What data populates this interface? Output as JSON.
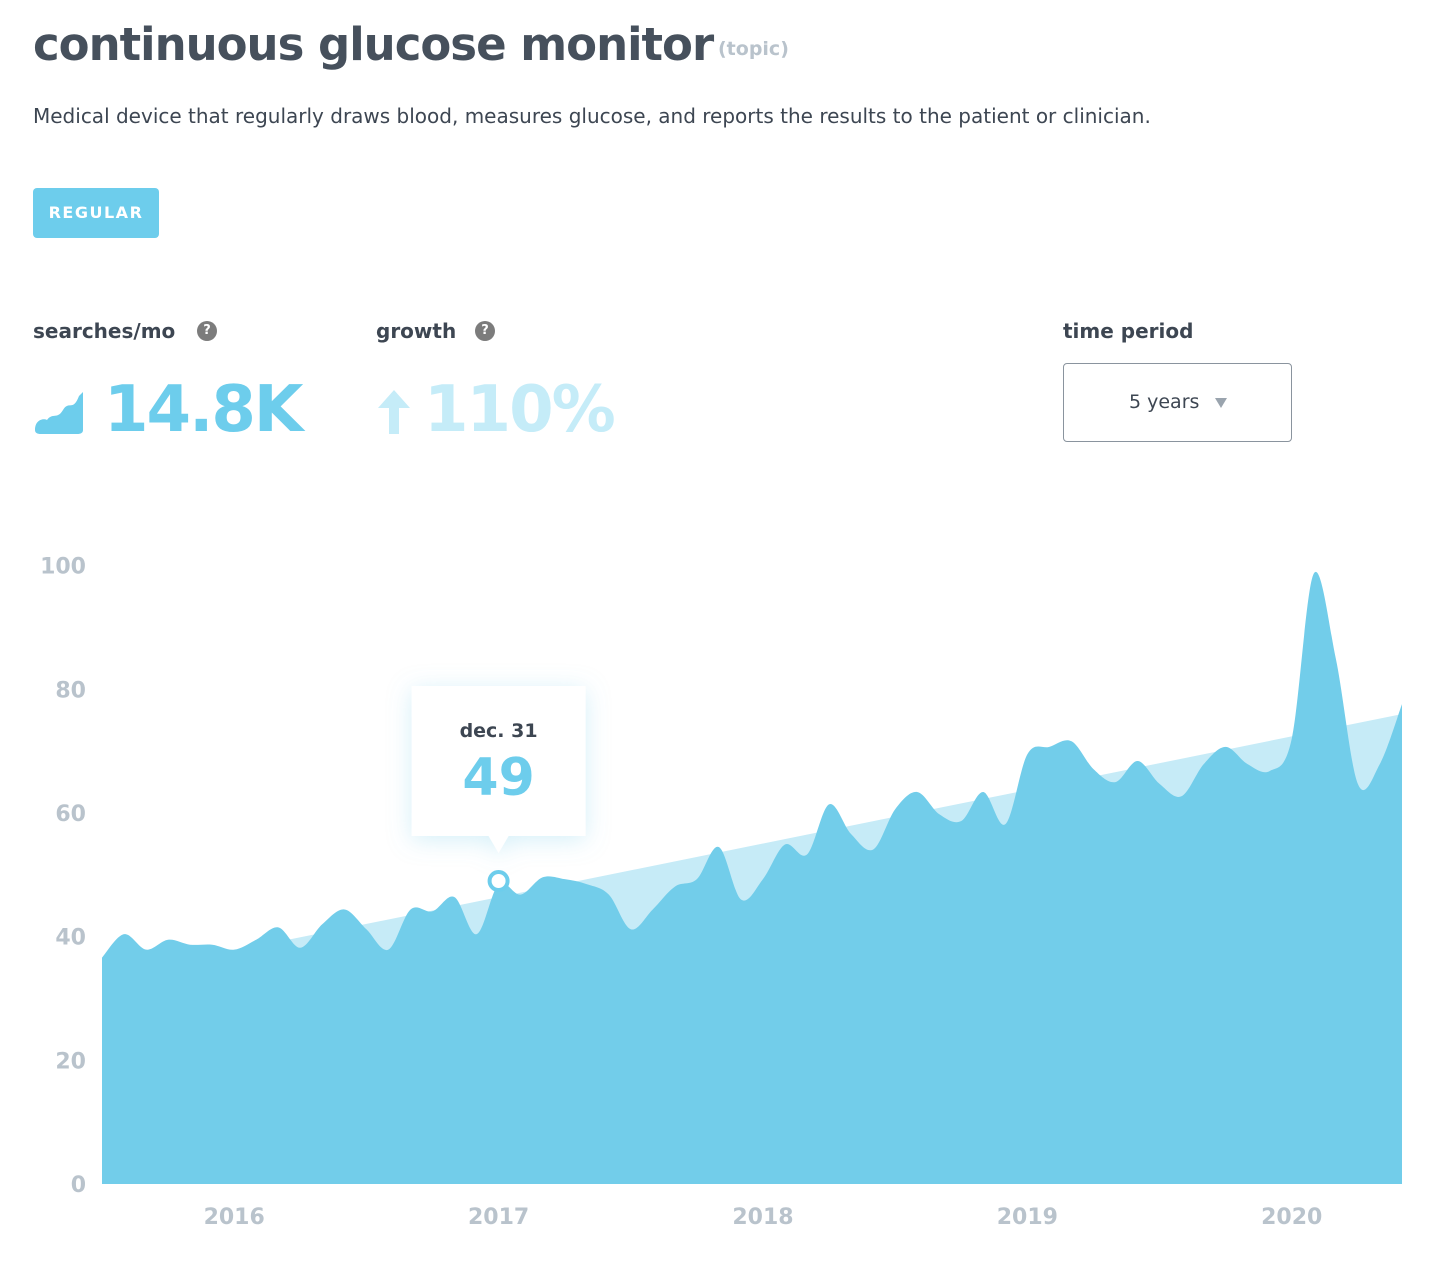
{
  "header": {
    "title": "continuous glucose monitor",
    "tag": "(topic)",
    "description": "Medical device that regularly draws blood, measures glucose, and reports the results to the patient or clinician.",
    "badge": "REGULAR"
  },
  "stats": {
    "searches_label": "searches/mo",
    "searches_value": "14.8K",
    "growth_label": "growth",
    "growth_value": "110%",
    "help": "?",
    "period_label": "time period",
    "period_value": "5 years"
  },
  "chart_data": {
    "type": "area",
    "x": [
      2015.5,
      2015.583,
      2015.667,
      2015.75,
      2015.833,
      2015.917,
      2016,
      2016.083,
      2016.167,
      2016.25,
      2016.333,
      2016.417,
      2016.5,
      2016.583,
      2016.667,
      2016.75,
      2016.833,
      2016.917,
      2017,
      2017.083,
      2017.167,
      2017.25,
      2017.333,
      2017.417,
      2017.5,
      2017.583,
      2017.667,
      2017.75,
      2017.833,
      2017.917,
      2018,
      2018.083,
      2018.167,
      2018.25,
      2018.333,
      2018.417,
      2018.5,
      2018.583,
      2018.667,
      2018.75,
      2018.833,
      2018.917,
      2019,
      2019.083,
      2019.167,
      2019.25,
      2019.333,
      2019.417,
      2019.5,
      2019.583,
      2019.667,
      2019.75,
      2019.833,
      2019.917,
      2020,
      2020.083,
      2020.167,
      2020.25,
      2020.333,
      2020.417
    ],
    "series": [
      {
        "color": "#72cdea",
        "values": [
          36.6,
          40.4,
          37.9,
          39.5,
          38.7,
          38.7,
          37.9,
          39.5,
          41.5,
          38.2,
          42,
          44.4,
          41.2,
          37.9,
          44.4,
          44.1,
          46.4,
          40.4,
          48.5,
          46.8,
          49.6,
          49.3,
          48.5,
          46.8,
          41.2,
          44.4,
          48.1,
          49.3,
          54.5,
          46,
          49.3,
          54.9,
          53.3,
          61.4,
          56.6,
          54.1,
          60.6,
          63.4,
          59.8,
          58.7,
          63.4,
          58.2,
          69.5,
          70.7,
          71.6,
          67.1,
          65,
          68.4,
          64.7,
          62.7,
          67.9,
          70.7,
          67.9,
          66.8,
          72,
          98.7,
          84.9,
          64.7,
          67.9,
          77.6
        ]
      }
    ],
    "trend": {
      "color": "#c6ebf7",
      "x": [
        2015.5,
        2020.417
      ],
      "values": [
        33.4,
        76
      ]
    },
    "tooltip": {
      "date": "dec. 31",
      "value": 49,
      "x": 2017
    },
    "xlim": [
      2015.5,
      2020.417
    ],
    "xticks": [
      2016,
      2017,
      2018,
      2019,
      2020
    ],
    "ylim": [
      0,
      109
    ],
    "yticks": [
      0,
      20,
      40,
      60,
      80,
      100
    ]
  }
}
